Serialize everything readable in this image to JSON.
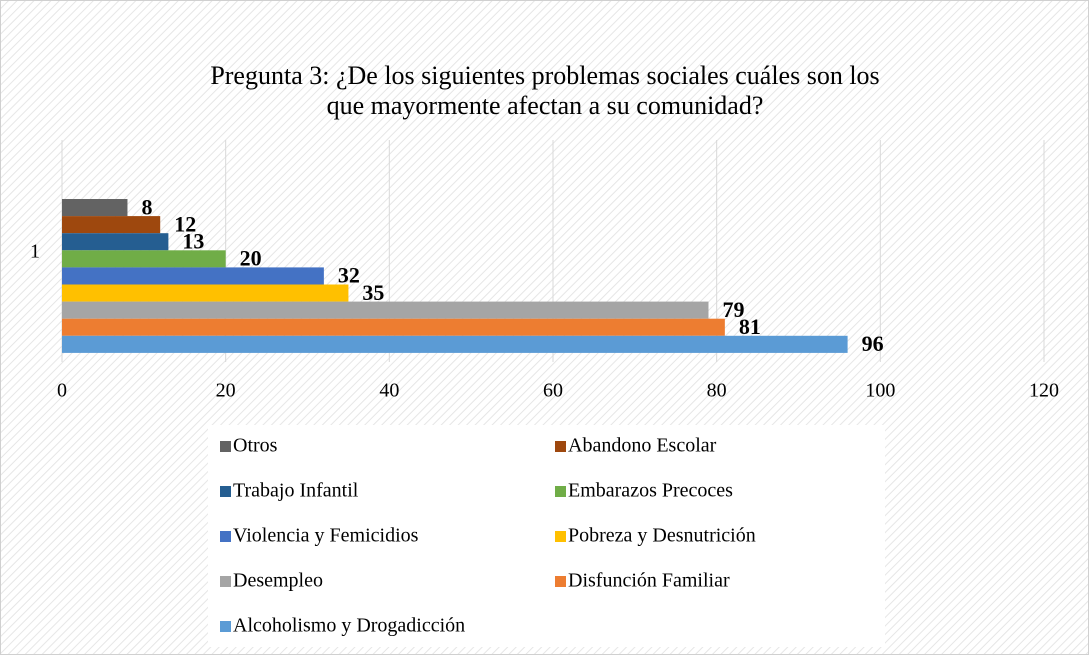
{
  "chart_data": {
    "type": "hbar",
    "title": [
      "Pregunta 3: ¿De los siguientes problemas sociales cuáles son los",
      "que mayormente afectan a su comunidad?"
    ],
    "categories": [
      "1"
    ],
    "series": [
      {
        "name": "Otros",
        "color": "#636363",
        "values": [
          8
        ]
      },
      {
        "name": "Abandono Escolar",
        "color": "#9e480e",
        "values": [
          12
        ]
      },
      {
        "name": "Trabajo Infantil",
        "color": "#255e91",
        "values": [
          13
        ]
      },
      {
        "name": "Embarazos Precoces",
        "color": "#70ad47",
        "values": [
          20
        ]
      },
      {
        "name": "Violencia y Femicidios",
        "color": "#4472c4",
        "values": [
          32
        ]
      },
      {
        "name": "Pobreza y Desnutrición",
        "color": "#ffc000",
        "values": [
          35
        ]
      },
      {
        "name": "Desempleo",
        "color": "#a5a5a5",
        "values": [
          79
        ]
      },
      {
        "name": "Disfunción Familiar",
        "color": "#ed7d31",
        "values": [
          81
        ]
      },
      {
        "name": "Alcoholismo y Drogadicción",
        "color": "#5b9bd5",
        "values": [
          96
        ]
      }
    ],
    "xlim": [
      0,
      120
    ],
    "xticks": [
      0,
      20,
      40,
      60,
      80,
      100,
      120
    ],
    "grid": true,
    "legend": "bottom"
  }
}
